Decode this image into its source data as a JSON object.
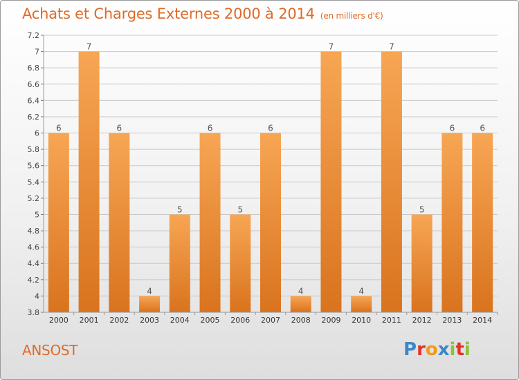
{
  "header": {
    "title": "Achats et Charges Externes 2000 à 2014",
    "unit": "(en milliers d'€)"
  },
  "footer": {
    "commune": "ANSOST",
    "brand": "Proxiti",
    "brand_letters": [
      {
        "char": "P",
        "color": "#3b88c9"
      },
      {
        "char": "r",
        "color": "#e3322b"
      },
      {
        "char": "o",
        "color": "#f39a1e"
      },
      {
        "char": "x",
        "color": "#3b88c9"
      },
      {
        "char": "i",
        "color": "#8ac23c"
      },
      {
        "char": "t",
        "color": "#e3322b"
      },
      {
        "char": "i",
        "color": "#8ac23c"
      }
    ]
  },
  "colors": {
    "bar_light": "#f7a654",
    "bar_dark": "#d9731e",
    "title": "#e06a28",
    "grid": "#c8c8c8"
  },
  "chart_data": {
    "type": "bar",
    "categories": [
      "2000",
      "2001",
      "2002",
      "2003",
      "2004",
      "2005",
      "2006",
      "2007",
      "2008",
      "2009",
      "2010",
      "2011",
      "2012",
      "2013",
      "2014"
    ],
    "values": [
      6,
      7,
      6,
      4,
      5,
      6,
      5,
      6,
      4,
      7,
      4,
      7,
      5,
      6,
      6
    ],
    "data_labels": [
      "6",
      "7",
      "6",
      "4",
      "5",
      "6",
      "5",
      "6",
      "4",
      "7",
      "4",
      "7",
      "5",
      "6",
      "6"
    ],
    "ylim": [
      3.8,
      7.2
    ],
    "yticks": [
      3.8,
      4,
      4.2,
      4.4,
      4.6,
      4.8,
      5,
      5.2,
      5.4,
      5.6,
      5.8,
      6,
      6.2,
      6.4,
      6.6,
      6.8,
      7,
      7.2
    ],
    "ytick_labels": [
      "3.8",
      "4",
      "4.2",
      "4.4",
      "4.6",
      "4.8",
      "5",
      "5.2",
      "5.4",
      "5.6",
      "5.8",
      "6",
      "6.2",
      "6.4",
      "6.6",
      "6.8",
      "7",
      "7.2"
    ],
    "grid": true
  }
}
